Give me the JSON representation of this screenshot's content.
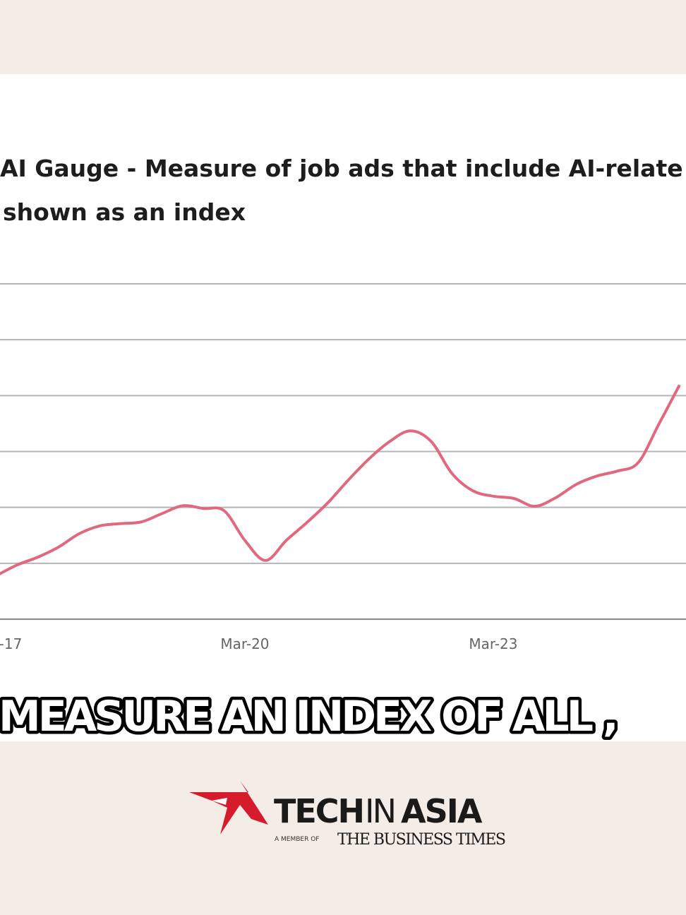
{
  "chart_data": {
    "type": "line",
    "title": "AI Gauge - Measure of job ads that include AI-relate",
    "subtitle": "shown as an index",
    "categories": [
      "-17",
      null,
      null,
      null,
      null,
      null,
      null,
      null,
      null,
      null,
      null,
      null,
      "Mar-20",
      null,
      null,
      null,
      null,
      null,
      null,
      null,
      null,
      null,
      null,
      null,
      "Mar-23",
      null,
      null,
      null,
      null,
      null,
      null,
      null,
      null,
      null
    ],
    "series": [
      {
        "name": "AI Gauge",
        "color": "#e0697f",
        "values": [
          0.78,
          0.97,
          1.11,
          1.29,
          1.53,
          1.67,
          1.71,
          1.74,
          1.89,
          2.03,
          1.98,
          1.94,
          1.41,
          1.05,
          1.41,
          1.73,
          2.08,
          2.49,
          2.87,
          3.18,
          3.37,
          3.18,
          2.61,
          2.3,
          2.2,
          2.16,
          2.02,
          2.17,
          2.41,
          2.56,
          2.65,
          2.8,
          3.49,
          4.19
        ]
      }
    ],
    "ylim": [
      0,
      6
    ],
    "yticks": [
      0,
      1,
      2,
      3,
      4,
      5,
      6
    ],
    "grid": true
  },
  "caption": "MEASURE AN INDEX OF ALL ,",
  "logo": {
    "tech": "TECH",
    "in": "IN",
    "asia": "ASIA",
    "member": "A MEMBER OF",
    "partner": "THE BUSINESS TIMES"
  }
}
